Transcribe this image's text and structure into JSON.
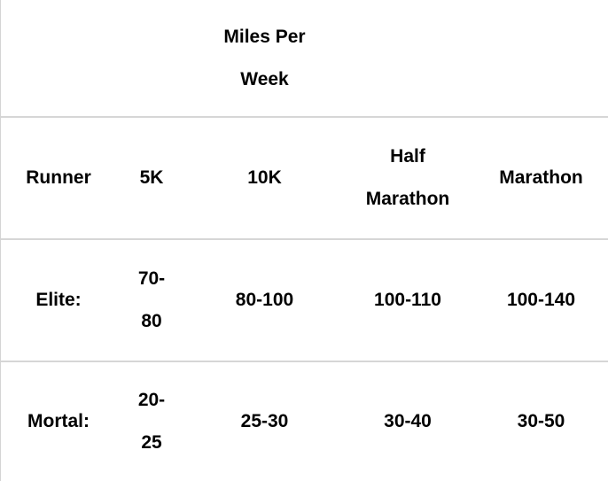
{
  "table": {
    "top_header": {
      "title_line1": "Miles Per",
      "title_line2": "Week"
    },
    "columns": [
      "Runner",
      "5K",
      "10K",
      "Half Marathon",
      "Marathon"
    ],
    "column_lines": {
      "half_line1": "Half",
      "half_line2": "Marathon"
    },
    "rows": [
      {
        "runner": "Elite:",
        "five_k_line1": "70-",
        "five_k_line2": "80",
        "ten_k": "80-100",
        "half": "100-110",
        "marathon": "100-140"
      },
      {
        "runner": "Mortal:",
        "five_k_line1": "20-",
        "five_k_line2": "25",
        "ten_k": "25-30",
        "half": "30-40",
        "marathon": "30-50"
      }
    ]
  }
}
